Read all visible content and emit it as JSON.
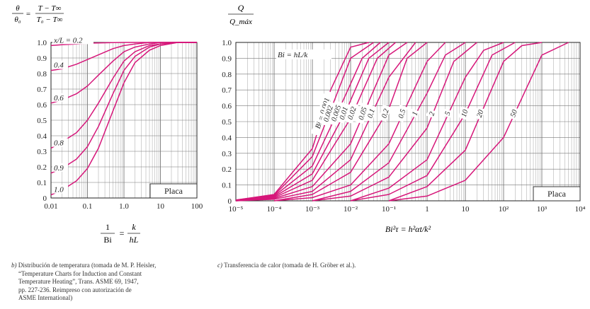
{
  "chart_data": [
    {
      "type": "line",
      "title": "",
      "ylabel_parts": {
        "lhs_num": "θ",
        "lhs_den": "θ₀",
        "eq": "=",
        "rhs_num": "T − T∞",
        "rhs_den": "T₀ − T∞"
      },
      "xlabel_parts": {
        "lhs_num": "1",
        "lhs_den": "Bi",
        "eq": "=",
        "rhs_num": "k",
        "rhs_den": "hL"
      },
      "x_scale": "log",
      "xlim": [
        0.01,
        100
      ],
      "ylim": [
        0,
        1.0
      ],
      "x_ticks": [
        "0.01",
        "0.1",
        "1.0",
        "10",
        "100"
      ],
      "y_ticks": [
        "0",
        "0.1",
        "0.2",
        "0.3",
        "0.4",
        "0.5",
        "0.6",
        "0.7",
        "0.8",
        "0.9",
        "1.0"
      ],
      "grid": true,
      "box_label": "Placa",
      "curve_color": "#d6177a",
      "series": [
        {
          "name": "x/L = 0.2",
          "x": [
            0.01,
            0.02,
            0.05,
            0.1,
            0.2,
            0.5,
            1,
            2,
            5,
            10,
            30,
            100
          ],
          "values": [
            0.98,
            0.985,
            0.99,
            0.995,
            0.997,
            0.999,
            1,
            1,
            1,
            1,
            1,
            1
          ]
        },
        {
          "name": "0.4",
          "x": [
            0.01,
            0.02,
            0.05,
            0.1,
            0.2,
            0.5,
            1,
            2,
            5,
            10,
            30,
            100
          ],
          "values": [
            0.82,
            0.83,
            0.86,
            0.89,
            0.92,
            0.96,
            0.98,
            0.99,
            1,
            1,
            1,
            1
          ]
        },
        {
          "name": "0.6",
          "x": [
            0.01,
            0.02,
            0.05,
            0.1,
            0.2,
            0.5,
            1,
            2,
            5,
            10,
            30,
            100
          ],
          "values": [
            0.61,
            0.63,
            0.67,
            0.72,
            0.79,
            0.88,
            0.94,
            0.97,
            0.99,
            1,
            1,
            1
          ]
        },
        {
          "name": "0.8",
          "x": [
            0.01,
            0.02,
            0.05,
            0.1,
            0.2,
            0.5,
            1,
            2,
            5,
            10,
            30,
            100
          ],
          "values": [
            0.32,
            0.36,
            0.42,
            0.5,
            0.61,
            0.77,
            0.88,
            0.94,
            0.98,
            0.99,
            1,
            1
          ]
        },
        {
          "name": "0.9",
          "x": [
            0.01,
            0.02,
            0.05,
            0.1,
            0.2,
            0.5,
            1,
            2,
            5,
            10,
            30,
            100
          ],
          "values": [
            0.16,
            0.19,
            0.25,
            0.33,
            0.46,
            0.67,
            0.82,
            0.91,
            0.97,
            0.99,
            1,
            1
          ]
        },
        {
          "name": "1.0",
          "x": [
            0.01,
            0.02,
            0.05,
            0.1,
            0.2,
            0.5,
            1,
            2,
            5,
            10,
            30,
            100
          ],
          "values": [
            0.02,
            0.05,
            0.11,
            0.19,
            0.32,
            0.56,
            0.74,
            0.87,
            0.95,
            0.98,
            1,
            1
          ]
        }
      ]
    },
    {
      "type": "line",
      "title": "",
      "ylabel_parts": {
        "num": "Q",
        "den": "Q_máx"
      },
      "xlabel": "Bi²τ = h²αt/k²",
      "x_scale": "log",
      "xlim": [
        1e-05,
        10000
      ],
      "ylim": [
        0,
        1.0
      ],
      "x_ticks": [
        "10⁻⁵",
        "10⁻⁴",
        "10⁻³",
        "10⁻²",
        "10⁻¹",
        "1",
        "10",
        "10²",
        "10³",
        "10⁴"
      ],
      "y_ticks": [
        "0",
        "0.1",
        "0.2",
        "0.3",
        "0.4",
        "0.5",
        "0.6",
        "0.7",
        "0.8",
        "0.9",
        "1.0"
      ],
      "grid": true,
      "box_label": "Placa",
      "annotation": "Bi = hL/k",
      "bi_label_prefix": "Bi = ",
      "curve_color": "#d6177a",
      "series": [
        {
          "name": "0.001",
          "x": [
            1e-05,
            0.0001,
            0.001,
            0.003,
            0.01,
            0.03
          ],
          "values": [
            0.005,
            0.04,
            0.33,
            0.7,
            0.97,
            1.0
          ]
        },
        {
          "name": "0.002",
          "x": [
            1e-05,
            0.0001,
            0.001,
            0.004,
            0.01,
            0.04
          ],
          "values": [
            0.005,
            0.035,
            0.28,
            0.65,
            0.9,
            1.0
          ]
        },
        {
          "name": "0.005",
          "x": [
            1e-05,
            0.0001,
            0.001,
            0.006,
            0.02,
            0.06
          ],
          "values": [
            0.004,
            0.03,
            0.22,
            0.62,
            0.9,
            1.0
          ]
        },
        {
          "name": "0.01",
          "x": [
            1e-05,
            0.0001,
            0.001,
            0.008,
            0.03,
            0.1
          ],
          "values": [
            0.003,
            0.025,
            0.17,
            0.58,
            0.9,
            1.0
          ]
        },
        {
          "name": "0.02",
          "x": [
            1e-05,
            0.0001,
            0.001,
            0.01,
            0.05,
            0.15
          ],
          "values": [
            0.002,
            0.02,
            0.13,
            0.52,
            0.9,
            1.0
          ]
        },
        {
          "name": "0.05",
          "x": [
            1e-05,
            0.0001,
            0.001,
            0.01,
            0.1,
            0.3
          ],
          "values": [
            0.0,
            0.015,
            0.09,
            0.36,
            0.92,
            1.0
          ]
        },
        {
          "name": "0.1",
          "x": [
            1e-05,
            0.0001,
            0.001,
            0.01,
            0.1,
            0.5
          ],
          "values": [
            0.0,
            0.01,
            0.06,
            0.26,
            0.78,
            1.0
          ]
        },
        {
          "name": "0.2",
          "x": [
            0.0001,
            0.001,
            0.01,
            0.1,
            0.3,
            1
          ],
          "values": [
            0.0,
            0.04,
            0.18,
            0.58,
            0.9,
            1.0
          ]
        },
        {
          "name": "0.5",
          "x": [
            0.0001,
            0.001,
            0.01,
            0.1,
            1,
            3
          ],
          "values": [
            0.0,
            0.02,
            0.1,
            0.36,
            0.88,
            1.0
          ]
        },
        {
          "name": "1",
          "x": [
            0.001,
            0.01,
            0.1,
            1,
            3,
            10
          ],
          "values": [
            0.0,
            0.06,
            0.24,
            0.68,
            0.92,
            1.0
          ]
        },
        {
          "name": "2",
          "x": [
            0.001,
            0.01,
            0.1,
            1,
            5,
            20
          ],
          "values": [
            0.0,
            0.03,
            0.15,
            0.46,
            0.88,
            1.0
          ]
        },
        {
          "name": "5",
          "x": [
            0.01,
            0.1,
            1,
            10,
            30,
            100
          ],
          "values": [
            0.0,
            0.08,
            0.26,
            0.78,
            0.95,
            1.0
          ]
        },
        {
          "name": "10",
          "x": [
            0.01,
            0.1,
            1,
            10,
            50,
            200
          ],
          "values": [
            0.0,
            0.04,
            0.16,
            0.55,
            0.92,
            1.0
          ]
        },
        {
          "name": "20",
          "x": [
            0.1,
            1,
            10,
            100,
            300,
            1000
          ],
          "values": [
            0.0,
            0.09,
            0.32,
            0.88,
            0.98,
            1.0
          ]
        },
        {
          "name": "50",
          "x": [
            0.1,
            1,
            10,
            100,
            1000,
            5000
          ],
          "values": [
            0.0,
            0.03,
            0.13,
            0.4,
            0.92,
            1.0
          ]
        }
      ]
    }
  ],
  "captions": {
    "left_prefix": "b)",
    "left_line1": "Distribución de temperatura (tomada de M. P. Heisler,",
    "left_line2": "“Temperature Charts for Induction and Constant",
    "left_line3": "Temperature Heating”, Trans. ASME 69, 1947,",
    "left_line4": "pp. 227-236. Reimpreso con autorización de",
    "left_line5": "ASME International)",
    "right_prefix": "c)",
    "right_text": "Transferencia de calor (tomada de H. Gröber et al.)."
  }
}
